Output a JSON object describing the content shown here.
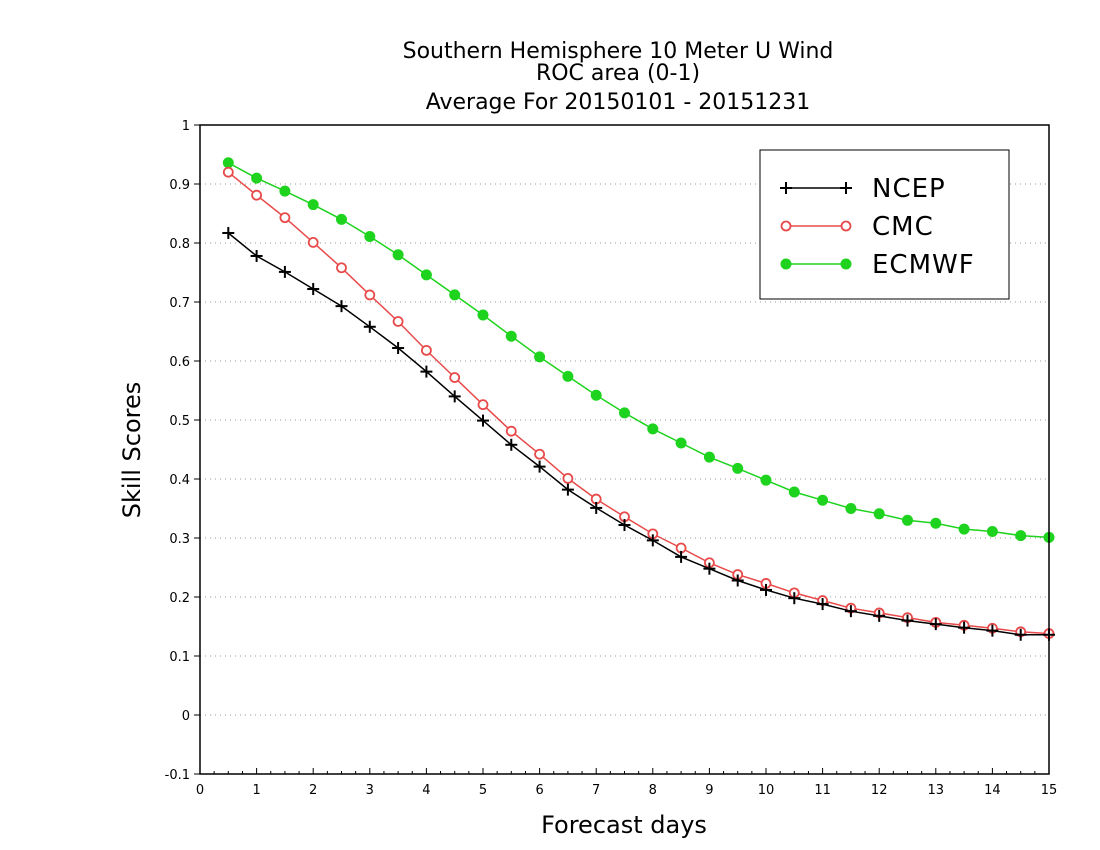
{
  "chart_data": {
    "type": "line",
    "title_lines": [
      "Southern Hemisphere 10 Meter U Wind",
      "ROC area (0-1)",
      "Average For 20150101 - 20151231"
    ],
    "xlabel": "Forecast days",
    "ylabel": "Skill Scores",
    "xlim": [
      0,
      15
    ],
    "ylim": [
      -0.1,
      1
    ],
    "xticks": [
      "0",
      "1",
      "2",
      "3",
      "4",
      "5",
      "6",
      "7",
      "8",
      "9",
      "10",
      "11",
      "12",
      "13",
      "14",
      "15"
    ],
    "yticks": [
      "-0.1",
      "0",
      "0.1",
      "0.2",
      "0.3",
      "0.4",
      "0.5",
      "0.6",
      "0.7",
      "0.8",
      "0.9",
      "1"
    ],
    "grid": "horizontal dotted",
    "legend_position": "top-right",
    "x": [
      0.5,
      1,
      1.5,
      2,
      2.5,
      3,
      3.5,
      4,
      4.5,
      5,
      5.5,
      6,
      6.5,
      7,
      7.5,
      8,
      8.5,
      9,
      9.5,
      10,
      10.5,
      11,
      11.5,
      12,
      12.5,
      13,
      13.5,
      14,
      14.5,
      15
    ],
    "series": [
      {
        "name": "NCEP",
        "color": "#000000",
        "marker": "plus",
        "values": [
          0.817,
          0.778,
          0.751,
          0.722,
          0.693,
          0.658,
          0.622,
          0.582,
          0.54,
          0.499,
          0.458,
          0.421,
          0.382,
          0.351,
          0.322,
          0.296,
          0.268,
          0.248,
          0.228,
          0.212,
          0.198,
          0.188,
          0.176,
          0.168,
          0.16,
          0.154,
          0.148,
          0.143,
          0.136,
          0.136
        ]
      },
      {
        "name": "CMC",
        "color": "#e84a4a",
        "marker": "open-circle",
        "values": [
          0.92,
          0.881,
          0.843,
          0.801,
          0.758,
          0.712,
          0.667,
          0.618,
          0.572,
          0.526,
          0.481,
          0.442,
          0.401,
          0.366,
          0.336,
          0.307,
          0.283,
          0.258,
          0.238,
          0.223,
          0.207,
          0.194,
          0.181,
          0.173,
          0.165,
          0.157,
          0.152,
          0.147,
          0.141,
          0.138
        ]
      },
      {
        "name": "ECMWF",
        "color": "#1ed31e",
        "marker": "filled-circle",
        "values": [
          0.936,
          0.91,
          0.888,
          0.865,
          0.84,
          0.811,
          0.78,
          0.746,
          0.712,
          0.678,
          0.642,
          0.607,
          0.574,
          0.542,
          0.512,
          0.485,
          0.461,
          0.437,
          0.418,
          0.398,
          0.378,
          0.364,
          0.35,
          0.341,
          0.33,
          0.325,
          0.315,
          0.311,
          0.304,
          0.301
        ]
      }
    ]
  }
}
